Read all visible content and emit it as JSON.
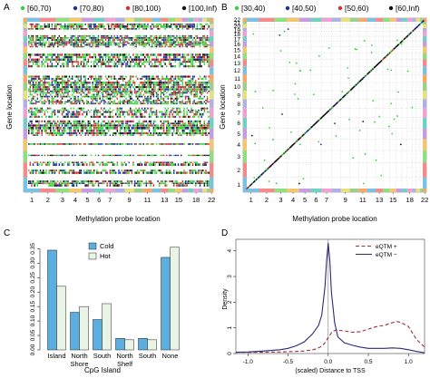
{
  "figure": {
    "panel_labels": [
      "A",
      "B",
      "C",
      "D"
    ],
    "colors": {
      "green": "#35d135",
      "blue": "#1f2fa8",
      "red": "#e02a2a",
      "black": "#111111",
      "cold": "#5aaee0",
      "hot": "#e9f4e6",
      "navy": "#2a2a7a",
      "darkred": "#a23030"
    }
  },
  "chart_data": [
    {
      "panel": "A",
      "type": "scatter",
      "xlabel": "Methylation probe location",
      "ylabel": "Gene location",
      "xticks": [
        "1",
        "2",
        "3",
        "4",
        "5",
        "6",
        "7",
        "8",
        "9",
        "10",
        "11",
        "12",
        "13",
        "14",
        "15",
        "16",
        "17",
        "18",
        "19",
        "20",
        "21",
        "22"
      ],
      "xtick_labels_shown": [
        "1",
        "2",
        "3",
        "4",
        "5",
        "6",
        "7",
        "9",
        "11",
        "13",
        "15",
        "18",
        "22"
      ],
      "chromosomes": 22,
      "legend": [
        {
          "label": "[60,70)",
          "color": "green"
        },
        {
          "label": "[70,80)",
          "color": "blue"
        },
        {
          "label": "[80,100)",
          "color": "red"
        },
        {
          "label": "[100,Inf)",
          "color": "black"
        }
      ],
      "legend_placement": "top",
      "grid": false
    },
    {
      "panel": "B",
      "type": "scatter",
      "xlabel": "Methylation probe location",
      "ylabel": "Gene location",
      "xticks": [
        "1",
        "2",
        "3",
        "4",
        "5",
        "6",
        "7",
        "8",
        "9",
        "10",
        "11",
        "12",
        "13",
        "14",
        "15",
        "16",
        "17",
        "18",
        "19",
        "20",
        "21",
        "22"
      ],
      "xtick_labels_shown": [
        "1",
        "2",
        "3",
        "4",
        "5",
        "6",
        "7",
        "9",
        "11",
        "13",
        "15",
        "18",
        "22"
      ],
      "ytick_labels_shown": [
        "1",
        "2",
        "3",
        "4",
        "5",
        "6",
        "7",
        "8",
        "9",
        "10",
        "11",
        "12",
        "13",
        "14",
        "15",
        "16",
        "17",
        "18",
        "19",
        "20",
        "21",
        "22"
      ],
      "legend": [
        {
          "label": "[30,40)",
          "color": "green"
        },
        {
          "label": "[40,50)",
          "color": "blue"
        },
        {
          "label": "[50,60)",
          "color": "red"
        },
        {
          "label": "[60,Inf)",
          "color": "black"
        }
      ],
      "legend_placement": "top",
      "grid": true,
      "pattern": "diagonal line of points with sparse off-diagonal points"
    },
    {
      "panel": "C",
      "type": "bar",
      "xlabel": "CpG Island",
      "ylabel": "",
      "categories": [
        "Island",
        "North Shore",
        "South Shore",
        "North Shelf",
        "South Shelf",
        "None"
      ],
      "category_label_lines": [
        [
          "Island"
        ],
        [
          "North",
          "Shore"
        ],
        [
          "South"
        ],
        [
          "North",
          "Shelf"
        ],
        [
          "South"
        ],
        [
          "None"
        ]
      ],
      "series": [
        {
          "name": "Cold",
          "color": "cold",
          "values": [
            0.345,
            0.13,
            0.105,
            0.04,
            0.04,
            0.32
          ]
        },
        {
          "name": "Hot",
          "color": "hot",
          "values": [
            0.22,
            0.15,
            0.16,
            0.035,
            0.035,
            0.355
          ]
        }
      ],
      "ylim": [
        0,
        0.37
      ],
      "yticks": [
        "0.00",
        "0.05",
        "0.10",
        "0.15",
        "0.20",
        "0.25",
        "0.30",
        "0.35"
      ],
      "ytick_values": [
        0,
        0.05,
        0.1,
        0.15,
        0.2,
        0.25,
        0.3,
        0.35
      ],
      "legend_placement": "top-center",
      "grid": false
    },
    {
      "panel": "D",
      "type": "line",
      "xlabel": "(scaled) Distance to TSS",
      "ylabel": "Density",
      "xlim": [
        -1.15,
        1.2
      ],
      "ylim": [
        0,
        4.45
      ],
      "xticks": [
        "-1.0",
        "-0.5",
        "0.0",
        "0.5",
        "1.0"
      ],
      "xtick_values": [
        -1,
        -0.5,
        0,
        0.5,
        1
      ],
      "yticks": [
        "0",
        "1",
        "2",
        "3",
        "4"
      ],
      "ytick_values": [
        0,
        1,
        2,
        3,
        4
      ],
      "vline_x": 0,
      "legend": [
        {
          "label": "eQTM +",
          "style": "dashed",
          "color": "darkred"
        },
        {
          "label": "eQTM −",
          "style": "solid",
          "color": "navy"
        }
      ],
      "legend_placement": "top-right",
      "series": [
        {
          "name": "eQTM +",
          "style": "dashed",
          "x": [
            -1.15,
            -1.0,
            -0.8,
            -0.6,
            -0.4,
            -0.3,
            -0.2,
            -0.15,
            -0.1,
            -0.05,
            0.0,
            0.05,
            0.1,
            0.15,
            0.2,
            0.3,
            0.4,
            0.5,
            0.6,
            0.7,
            0.8,
            0.85,
            0.9,
            1.0,
            1.1,
            1.2
          ],
          "y": [
            0.05,
            0.05,
            0.05,
            0.06,
            0.08,
            0.1,
            0.14,
            0.18,
            0.25,
            0.38,
            0.62,
            0.85,
            0.92,
            0.9,
            0.88,
            0.83,
            0.85,
            0.95,
            1.05,
            1.1,
            1.2,
            1.25,
            1.22,
            1.05,
            0.55,
            0.25
          ]
        },
        {
          "name": "eQTM −",
          "style": "solid",
          "x": [
            -1.15,
            -1.0,
            -0.8,
            -0.6,
            -0.5,
            -0.4,
            -0.3,
            -0.2,
            -0.12,
            -0.08,
            -0.04,
            -0.02,
            0.0,
            0.02,
            0.04,
            0.08,
            0.12,
            0.2,
            0.3,
            0.4,
            0.5,
            0.6,
            0.7,
            0.8,
            0.9,
            1.0,
            1.1,
            1.2
          ],
          "y": [
            0.05,
            0.06,
            0.1,
            0.15,
            0.2,
            0.3,
            0.45,
            0.75,
            1.1,
            1.5,
            2.6,
            3.6,
            4.3,
            3.6,
            2.4,
            1.2,
            0.65,
            0.42,
            0.32,
            0.25,
            0.2,
            0.2,
            0.2,
            0.22,
            0.2,
            0.15,
            0.08,
            0.03
          ]
        }
      ]
    }
  ]
}
